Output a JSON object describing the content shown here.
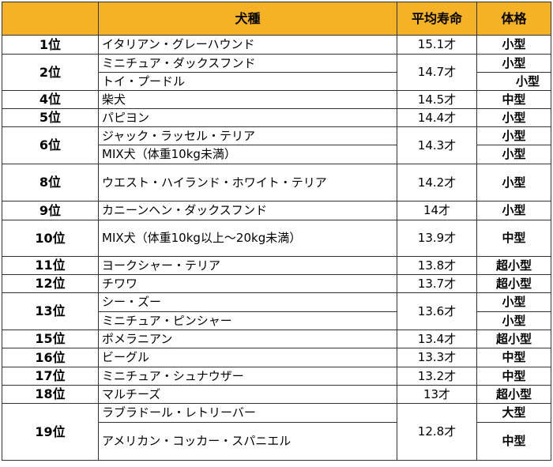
{
  "header": {
    "rank": "",
    "breed": "犬種",
    "life": "平均寿命",
    "size": "体格"
  },
  "rows": [
    {
      "rank": "1位",
      "breeds": [
        {
          "name": "イタリアン・グレーハウンド",
          "size": "小型"
        }
      ],
      "life": "15.1才"
    },
    {
      "rank": "2位",
      "breeds": [
        {
          "name": "ミニチュア・ダックスフンド",
          "size": "小型"
        },
        {
          "name": "トイ・プードル",
          "size": "小型"
        }
      ],
      "life": "14.7才"
    },
    {
      "rank": "4位",
      "breeds": [
        {
          "name": "柴犬",
          "size": "中型"
        }
      ],
      "life": "14.5才"
    },
    {
      "rank": "5位",
      "breeds": [
        {
          "name": "パピヨン",
          "size": "小型"
        }
      ],
      "life": "14.4才"
    },
    {
      "rank": "6位",
      "breeds": [
        {
          "name": "ジャック・ラッセル・テリア",
          "size": "小型"
        },
        {
          "name": "MIX犬（体重10kg未満）",
          "size": "小型"
        }
      ],
      "life": "14.3才"
    },
    {
      "rank": "8位",
      "breeds": [
        {
          "name": "ウエスト・ハイランド・ホワイト・テリア",
          "size": "小型"
        }
      ],
      "life": "14.2才"
    },
    {
      "rank": "9位",
      "breeds": [
        {
          "name": "カニーンヘン・ダックスフンド",
          "size": "小型"
        }
      ],
      "life": "14才"
    },
    {
      "rank": "10位",
      "breeds": [
        {
          "name": "MIX犬（体重10kg以上～20kg未満）",
          "size": "中型"
        }
      ],
      "life": "13.9才"
    },
    {
      "rank": "11位",
      "breeds": [
        {
          "name": "ヨークシャー・テリア",
          "size": "超小型"
        }
      ],
      "life": "13.8才"
    },
    {
      "rank": "12位",
      "breeds": [
        {
          "name": "チワワ",
          "size": "超小型"
        }
      ],
      "life": "13.7才"
    },
    {
      "rank": "13位",
      "breeds": [
        {
          "name": "シー・ズー",
          "size": "小型"
        },
        {
          "name": "ミニチュア・ピンシャー",
          "size": "小型"
        }
      ],
      "life": "13.6才"
    },
    {
      "rank": "15位",
      "breeds": [
        {
          "name": "ポメラニアン",
          "size": "超小型"
        }
      ],
      "life": "13.4才"
    },
    {
      "rank": "16位",
      "breeds": [
        {
          "name": "ビーグル",
          "size": "中型"
        }
      ],
      "life": "13.3才"
    },
    {
      "rank": "17位",
      "breeds": [
        {
          "name": "ミニチュア・シュナウザー",
          "size": "中型"
        }
      ],
      "life": "13.2才"
    },
    {
      "rank": "18位",
      "breeds": [
        {
          "name": "マルチーズ",
          "size": "超小型"
        }
      ],
      "life": "13才"
    },
    {
      "rank": "19位",
      "breeds": [
        {
          "name": "ラブラドール・レトリーバー",
          "size": "大型"
        },
        {
          "name": "アメリカン・コッカー・スパニエル",
          "size": "中型"
        }
      ],
      "life": "12.8才"
    }
  ],
  "colors": {
    "header_bg": "#f5b224",
    "border": "#333333"
  }
}
